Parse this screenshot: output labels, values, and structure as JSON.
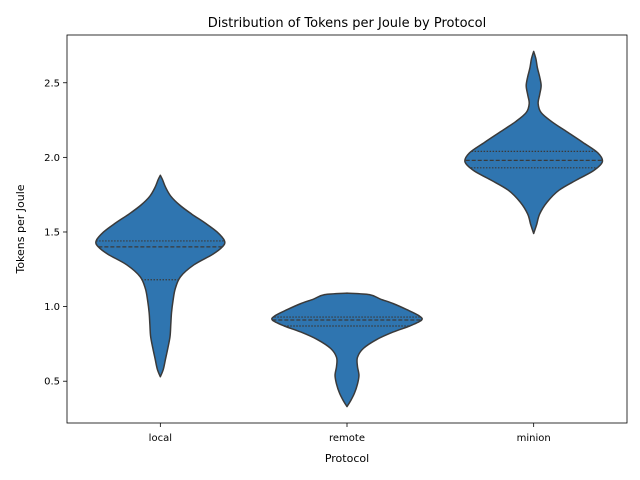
{
  "chart_data": {
    "type": "violin",
    "title": "Distribution of Tokens per Joule by Protocol",
    "xlabel": "Protocol",
    "ylabel": "Tokens per Joule",
    "categories": [
      "local",
      "remote",
      "minion"
    ],
    "yticks": [
      0.5,
      1.0,
      1.5,
      2.0,
      2.5
    ],
    "ytick_labels": [
      "0.5",
      "1.0",
      "1.5",
      "2.0",
      "2.5"
    ],
    "ylim": [
      0.22,
      2.82
    ],
    "grid": false,
    "fill_color": "#2f75b0",
    "edge_color": "#3a3a3a",
    "violins": [
      {
        "category": "local",
        "min": 0.53,
        "max": 1.88,
        "quartiles": [
          1.18,
          1.4,
          1.44
        ],
        "profile": [
          [
            0.53,
            0.0
          ],
          [
            0.58,
            0.04
          ],
          [
            0.65,
            0.07
          ],
          [
            0.72,
            0.1
          ],
          [
            0.8,
            0.13
          ],
          [
            0.88,
            0.14
          ],
          [
            0.96,
            0.15
          ],
          [
            1.04,
            0.17
          ],
          [
            1.12,
            0.2
          ],
          [
            1.2,
            0.27
          ],
          [
            1.28,
            0.45
          ],
          [
            1.35,
            0.7
          ],
          [
            1.4,
            0.83
          ],
          [
            1.44,
            0.86
          ],
          [
            1.5,
            0.76
          ],
          [
            1.56,
            0.6
          ],
          [
            1.62,
            0.42
          ],
          [
            1.68,
            0.26
          ],
          [
            1.74,
            0.14
          ],
          [
            1.8,
            0.07
          ],
          [
            1.85,
            0.03
          ],
          [
            1.88,
            0.0
          ]
        ]
      },
      {
        "category": "remote",
        "min": 0.33,
        "max": 1.09,
        "quartiles": [
          0.87,
          0.91,
          0.93
        ],
        "profile": [
          [
            0.33,
            0.0
          ],
          [
            0.37,
            0.05
          ],
          [
            0.42,
            0.1
          ],
          [
            0.48,
            0.14
          ],
          [
            0.54,
            0.16
          ],
          [
            0.6,
            0.14
          ],
          [
            0.66,
            0.14
          ],
          [
            0.72,
            0.22
          ],
          [
            0.78,
            0.4
          ],
          [
            0.83,
            0.62
          ],
          [
            0.87,
            0.84
          ],
          [
            0.91,
            1.0
          ],
          [
            0.94,
            0.96
          ],
          [
            0.98,
            0.8
          ],
          [
            1.02,
            0.62
          ],
          [
            1.05,
            0.45
          ],
          [
            1.08,
            0.3
          ],
          [
            1.09,
            0.0
          ]
        ]
      },
      {
        "category": "minion",
        "min": 1.49,
        "max": 2.71,
        "quartiles": [
          1.93,
          1.98,
          2.04
        ],
        "profile": [
          [
            1.49,
            0.0
          ],
          [
            1.55,
            0.04
          ],
          [
            1.62,
            0.08
          ],
          [
            1.7,
            0.18
          ],
          [
            1.78,
            0.34
          ],
          [
            1.85,
            0.58
          ],
          [
            1.91,
            0.8
          ],
          [
            1.97,
            0.92
          ],
          [
            2.03,
            0.86
          ],
          [
            2.1,
            0.66
          ],
          [
            2.17,
            0.45
          ],
          [
            2.24,
            0.24
          ],
          [
            2.3,
            0.1
          ],
          [
            2.36,
            0.06
          ],
          [
            2.42,
            0.08
          ],
          [
            2.48,
            0.1
          ],
          [
            2.54,
            0.08
          ],
          [
            2.6,
            0.05
          ],
          [
            2.66,
            0.03
          ],
          [
            2.71,
            0.0
          ]
        ]
      }
    ]
  }
}
